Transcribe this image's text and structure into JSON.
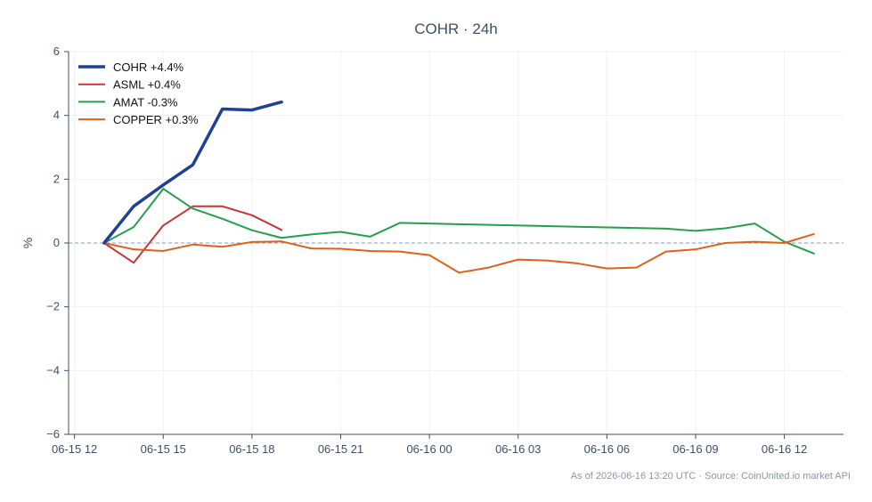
{
  "chart_data": {
    "type": "line",
    "title": "COHR · 24h",
    "xlabel": "",
    "ylabel": "%",
    "ylim": [
      -6,
      6
    ],
    "xlim": [
      "2026-06-15 11:48",
      "2026-06-16 14:00"
    ],
    "yticks": [
      6,
      4,
      2,
      0,
      -2,
      -4,
      -6
    ],
    "ytick_labels": [
      "6",
      "4",
      "2",
      "0",
      "−2",
      "−4",
      "−6"
    ],
    "xticks": [
      "2026-06-15 12:00",
      "2026-06-15 15:00",
      "2026-06-15 18:00",
      "2026-06-15 21:00",
      "2026-06-16 00:00",
      "2026-06-16 03:00",
      "2026-06-16 06:00",
      "2026-06-16 09:00",
      "2026-06-16 12:00"
    ],
    "xtick_labels": [
      "06-15 12",
      "06-15 15",
      "06-15 18",
      "06-15 21",
      "06-16 00",
      "06-16 03",
      "06-16 06",
      "06-16 09",
      "06-16 12"
    ],
    "grid": true,
    "zero_line": {
      "y": 0,
      "color": "#8a9bb5",
      "style": "dashed"
    },
    "legend_position": "top-left",
    "series": [
      {
        "name": "COHR +4.4%",
        "color": "#1f3f99",
        "emphasis": true,
        "x": [
          "2026-06-15 13:00",
          "2026-06-15 14:00",
          "2026-06-15 15:00",
          "2026-06-15 16:00",
          "2026-06-15 17:00",
          "2026-06-15 18:00",
          "2026-06-15 19:00"
        ],
        "values": [
          0,
          1.15,
          1.82,
          2.45,
          4.2,
          4.17,
          4.42
        ]
      },
      {
        "name": "ASML +0.4%",
        "color": "#cc3333",
        "emphasis": false,
        "x": [
          "2026-06-15 13:00",
          "2026-06-15 14:00",
          "2026-06-15 15:00",
          "2026-06-15 16:00",
          "2026-06-15 17:00",
          "2026-06-15 18:00",
          "2026-06-15 19:00"
        ],
        "values": [
          0,
          -0.62,
          0.55,
          1.15,
          1.15,
          0.87,
          0.41
        ]
      },
      {
        "name": "AMAT -0.3%",
        "color": "#22a04a",
        "emphasis": false,
        "x": [
          "2026-06-15 13:00",
          "2026-06-15 14:00",
          "2026-06-15 15:00",
          "2026-06-15 16:00",
          "2026-06-15 17:00",
          "2026-06-15 18:00",
          "2026-06-15 19:00",
          "2026-06-15 20:00",
          "2026-06-15 21:00",
          "2026-06-15 22:00",
          "2026-06-15 23:00",
          "2026-06-16 08:00",
          "2026-06-16 09:00",
          "2026-06-16 10:00",
          "2026-06-16 11:00",
          "2026-06-16 12:00",
          "2026-06-16 13:00"
        ],
        "values": [
          0,
          0.5,
          1.7,
          1.08,
          0.76,
          0.4,
          0.16,
          0.27,
          0.35,
          0.2,
          0.63,
          0.45,
          0.38,
          0.46,
          0.61,
          0.04,
          -0.33
        ]
      },
      {
        "name": "COPPER +0.3%",
        "color": "#e0601a",
        "emphasis": false,
        "x": [
          "2026-06-15 13:00",
          "2026-06-15 14:00",
          "2026-06-15 15:00",
          "2026-06-15 16:00",
          "2026-06-15 17:00",
          "2026-06-15 18:00",
          "2026-06-15 19:00",
          "2026-06-15 20:00",
          "2026-06-15 21:00",
          "2026-06-15 22:00",
          "2026-06-15 23:00",
          "2026-06-16 00:00",
          "2026-06-16 01:00",
          "2026-06-16 02:00",
          "2026-06-16 03:00",
          "2026-06-16 04:00",
          "2026-06-16 05:00",
          "2026-06-16 06:00",
          "2026-06-16 07:00",
          "2026-06-16 08:00",
          "2026-06-16 09:00",
          "2026-06-16 10:00",
          "2026-06-16 11:00",
          "2026-06-16 12:00",
          "2026-06-16 13:00"
        ],
        "values": [
          0,
          -0.2,
          -0.25,
          -0.05,
          -0.12,
          0.03,
          0.05,
          -0.17,
          -0.18,
          -0.25,
          -0.27,
          -0.38,
          -0.93,
          -0.77,
          -0.52,
          -0.55,
          -0.64,
          -0.8,
          -0.77,
          -0.27,
          -0.2,
          0,
          0.04,
          0,
          0.28
        ]
      }
    ]
  },
  "footer": {
    "note": "As of 2026-06-16 13:20 UTC · Source: CoinUnited.io market API"
  },
  "colors": {
    "background": "#ffffff",
    "axis": "#3d4f66",
    "text": "#3d4f66",
    "grid": "#eef1f5",
    "footnote": "#8895a7"
  }
}
